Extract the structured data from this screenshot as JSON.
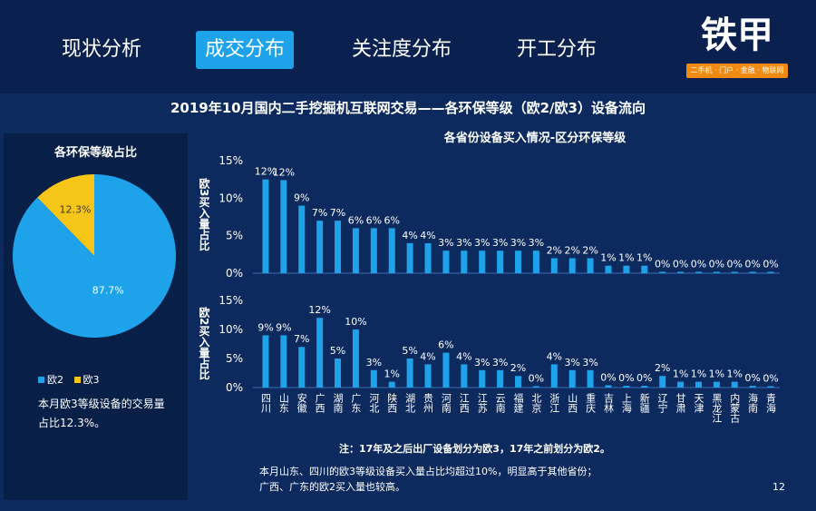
{
  "nav": {
    "tabs": [
      {
        "label": "现状分析",
        "active": false
      },
      {
        "label": "成交分布",
        "active": true
      },
      {
        "label": "关注度分布",
        "active": false
      },
      {
        "label": "开工分布",
        "active": false
      }
    ]
  },
  "logo": {
    "text": "铁甲",
    "tagline": "二手机 · 门户 · 金融 · 物联网"
  },
  "title": "2019年10月国内二手挖掘机互联网交易——各环保等级（欧2/欧3）设备流向",
  "chart_subtitle": "各省份设备买入情况-区分环保等级",
  "pie": {
    "title": "各环保等级占比",
    "legend": [
      {
        "name": "欧2",
        "color": "#1ea3ea"
      },
      {
        "name": "欧3",
        "color": "#f5c518"
      }
    ],
    "note": "本月欧3等级设备的交易量占比12.3%。"
  },
  "colors": {
    "bar": "#1ea3ea",
    "pie_o2": "#1ea3ea",
    "pie_o3": "#f5c518",
    "bg": "#0d2a5e"
  },
  "ylabels": {
    "top": "欧3买入量占比",
    "bottom": "欧2买入量占比"
  },
  "notes": {
    "footnote": "注：17年及之后出厂设备划分为欧3，17年之前划分为欧2。",
    "summary_line1": "本月山东、四川的欧3等级设备买入量占比均超过10%，明显高于其他省份；",
    "summary_line2": "广西、广东的欧2买入量也较高。"
  },
  "page_number": "12",
  "chart_data": [
    {
      "type": "pie",
      "title": "各环保等级占比",
      "slices": [
        {
          "name": "欧2",
          "value": 87.7,
          "label": "87.7%"
        },
        {
          "name": "欧3",
          "value": 12.3,
          "label": "12.3%"
        }
      ]
    },
    {
      "type": "bar",
      "ylabel": "欧3买入量占比",
      "ylim": [
        0,
        15
      ],
      "yticks": [
        "0%",
        "5%",
        "10%",
        "15%"
      ],
      "values": [
        12.5,
        12.4,
        9,
        7,
        7,
        6,
        6,
        6,
        4,
        4,
        3,
        3,
        3,
        3,
        3,
        3,
        2,
        2,
        2,
        1,
        1,
        1,
        0,
        0,
        0,
        0,
        0,
        0,
        0
      ],
      "labels": [
        "12%",
        "12%",
        "9%",
        "7%",
        "7%",
        "6%",
        "6%",
        "6%",
        "4%",
        "4%",
        "3%",
        "3%",
        "3%",
        "3%",
        "3%",
        "3%",
        "2%",
        "2%",
        "2%",
        "1%",
        "1%",
        "1%",
        "0%",
        "0%",
        "0%",
        "0%",
        "0%",
        "0%",
        "0%"
      ]
    },
    {
      "type": "bar",
      "ylabel": "欧2买入量占比",
      "ylim": [
        0,
        15
      ],
      "yticks": [
        "0%",
        "5%",
        "10%",
        "15%"
      ],
      "categories": [
        "四川",
        "山东",
        "安徽",
        "广西",
        "湖南",
        "广东",
        "河北",
        "陕西",
        "湖北",
        "贵州",
        "河南",
        "江西",
        "江苏",
        "云南",
        "福建",
        "北京",
        "浙江",
        "山西",
        "重庆",
        "吉林",
        "上海",
        "新疆",
        "辽宁",
        "甘肃",
        "天津",
        "黑龙江",
        "内蒙古",
        "海南",
        "青海"
      ],
      "values": [
        9,
        9,
        7,
        12,
        5,
        10,
        3,
        1,
        5,
        4,
        6,
        4,
        3,
        3,
        2,
        0,
        4,
        3,
        3,
        0.4,
        0.3,
        0.3,
        2,
        1,
        1,
        1,
        1,
        0.3,
        0.2
      ],
      "labels": [
        "9%",
        "9%",
        "7%",
        "12%",
        "5%",
        "10%",
        "3%",
        "1%",
        "5%",
        "4%",
        "6%",
        "4%",
        "3%",
        "3%",
        "2%",
        "0%",
        "4%",
        "3%",
        "3%",
        "0%",
        "0%",
        "0%",
        "2%",
        "1%",
        "1%",
        "1%",
        "1%",
        "0%",
        "0%"
      ]
    }
  ]
}
